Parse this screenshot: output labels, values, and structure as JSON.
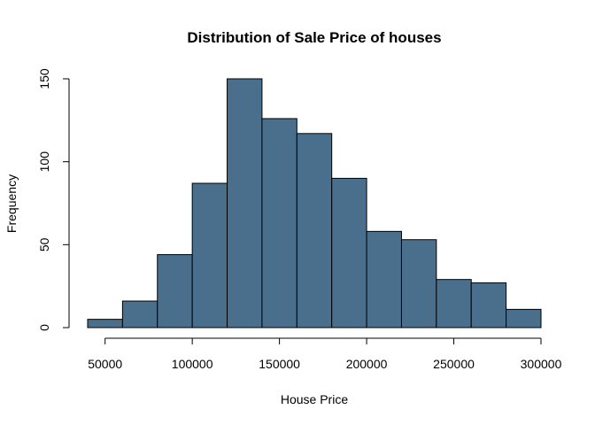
{
  "chart_data": {
    "type": "bar",
    "title": "Distribution of Sale Price of houses",
    "xlabel": "House Price",
    "ylabel": "Frequency",
    "bin_edges": [
      40000,
      60000,
      80000,
      100000,
      120000,
      140000,
      160000,
      180000,
      200000,
      220000,
      240000,
      260000,
      280000,
      300000
    ],
    "values": [
      5,
      16,
      44,
      87,
      150,
      126,
      117,
      90,
      58,
      53,
      29,
      27,
      11
    ],
    "x_ticks": [
      50000,
      100000,
      150000,
      200000,
      250000,
      300000
    ],
    "y_ticks": [
      0,
      50,
      100,
      150
    ],
    "xlim": [
      40000,
      300000
    ],
    "ylim": [
      0,
      150
    ],
    "bar_color": "#4A6F8C",
    "grid": false,
    "legend": "none"
  }
}
